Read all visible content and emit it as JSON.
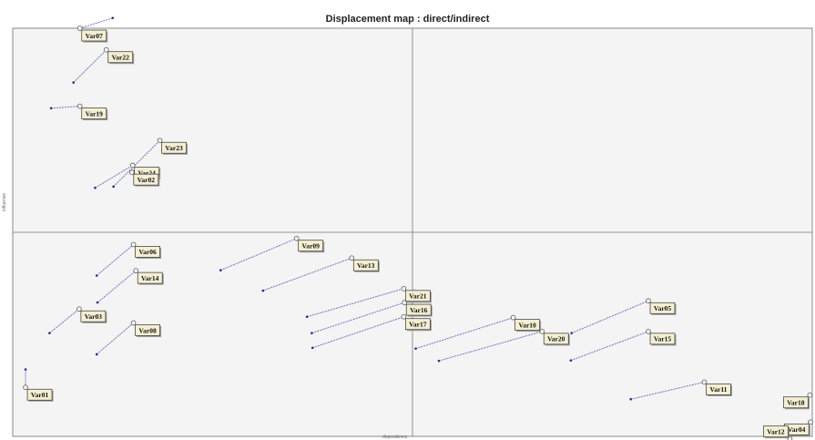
{
  "chart_data": {
    "type": "scatter",
    "title": "Displacement map : direct/indirect",
    "xlabel": "dependence",
    "ylabel": "influence",
    "xlim": [
      0,
      100
    ],
    "ylim": [
      0,
      100
    ],
    "grid": false,
    "axis_lines": {
      "x": 50,
      "y": 50
    },
    "colors": {
      "arrow": "#6f73c4",
      "tail": "#2a2a90",
      "frame": "#8a8a8a",
      "background": "#f4f4f4",
      "label_bg": "#f4efd2",
      "label_border": "#333333"
    },
    "series": [
      {
        "label": "Var07",
        "from": [
          12.5,
          102.5
        ],
        "to": [
          8.4,
          100.0
        ]
      },
      {
        "label": "Var22",
        "from": [
          7.6,
          86.7
        ],
        "to": [
          11.7,
          94.7
        ]
      },
      {
        "label": "Var19",
        "from": [
          4.8,
          80.4
        ],
        "to": [
          8.4,
          80.9
        ]
      },
      {
        "label": "Var23",
        "from": [
          12.6,
          61.2
        ],
        "to": [
          18.4,
          72.5
        ]
      },
      {
        "label": "Var24",
        "from": [
          10.3,
          60.9
        ],
        "to": [
          15.0,
          66.4
        ]
      },
      {
        "label": "Var02",
        "from": [
          15.4,
          65.7
        ],
        "to": [
          14.9,
          64.7
        ]
      },
      {
        "label": "Var06",
        "from": [
          10.5,
          39.4
        ],
        "to": [
          15.1,
          47.0
        ]
      },
      {
        "label": "Var14",
        "from": [
          10.6,
          32.8
        ],
        "to": [
          15.4,
          40.6
        ]
      },
      {
        "label": "Var03",
        "from": [
          4.6,
          25.3
        ],
        "to": [
          8.3,
          31.2
        ]
      },
      {
        "label": "Var08",
        "from": [
          10.5,
          20.1
        ],
        "to": [
          15.1,
          27.8
        ]
      },
      {
        "label": "Var01",
        "from": [
          1.6,
          16.4
        ],
        "to": [
          1.6,
          12.0
        ]
      },
      {
        "label": "Var09",
        "from": [
          26.0,
          40.7
        ],
        "to": [
          35.5,
          48.5
        ]
      },
      {
        "label": "Var13",
        "from": [
          31.3,
          35.7
        ],
        "to": [
          42.4,
          43.7
        ]
      },
      {
        "label": "Var21",
        "from": [
          36.8,
          29.3
        ],
        "to": [
          48.9,
          36.2
        ]
      },
      {
        "label": "Var16",
        "from": [
          37.4,
          25.3
        ],
        "to": [
          49.0,
          32.8
        ]
      },
      {
        "label": "Var17",
        "from": [
          37.5,
          21.7
        ],
        "to": [
          48.9,
          29.3
        ]
      },
      {
        "label": "Var10",
        "from": [
          50.4,
          21.5
        ],
        "to": [
          62.6,
          29.1
        ]
      },
      {
        "label": "Var20",
        "from": [
          53.3,
          18.5
        ],
        "to": [
          66.2,
          25.7
        ]
      },
      {
        "label": "Var05",
        "from": [
          69.9,
          25.3
        ],
        "to": [
          79.5,
          33.2
        ]
      },
      {
        "label": "Var15",
        "from": [
          69.8,
          18.6
        ],
        "to": [
          79.5,
          25.7
        ]
      },
      {
        "label": "Var11",
        "from": [
          77.3,
          9.1
        ],
        "to": [
          86.5,
          13.3
        ]
      },
      {
        "label": "Var18",
        "from": [
          98.4,
          7.2
        ],
        "to": [
          99.7,
          10.1
        ]
      },
      {
        "label": "Var04",
        "from": [
          99.6,
          3.5
        ],
        "to": [
          99.8,
          3.5
        ]
      },
      {
        "label": "Var12",
        "from": [
          96.0,
          0.0
        ],
        "to": [
          97.2,
          -0.6
        ]
      }
    ]
  }
}
